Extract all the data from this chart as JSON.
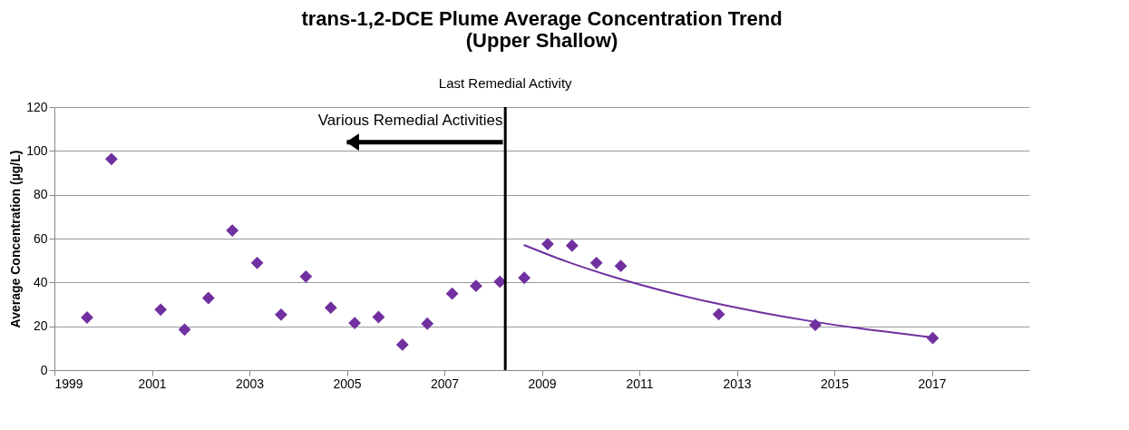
{
  "chart_data": {
    "type": "scatter",
    "title": "trans-1,2-DCE Plume Average Concentration Trend\n(Upper Shallow)",
    "ylabel": "Average Concentration (µg/L)",
    "xlim": [
      1999,
      2019
    ],
    "xticks": [
      1999,
      2001,
      2003,
      2005,
      2007,
      2009,
      2011,
      2013,
      2015,
      2017
    ],
    "ylim": [
      0,
      120
    ],
    "yticks": [
      0,
      20,
      40,
      60,
      80,
      100,
      120
    ],
    "grid": "y",
    "series": [
      {
        "marker": "diamond",
        "color": "#7030a0",
        "x": [
          1999.67,
          2000.17,
          2001.18,
          2001.67,
          2002.16,
          2002.65,
          2003.16,
          2003.65,
          2004.16,
          2004.67,
          2005.16,
          2005.65,
          2006.14,
          2006.65,
          2007.16,
          2007.65,
          2008.14,
          2008.64,
          2009.12,
          2009.62,
          2010.12,
          2010.62,
          2012.63,
          2014.61,
          2017.02
        ],
        "values": [
          24.0,
          96.3,
          27.6,
          18.5,
          32.9,
          63.7,
          48.9,
          25.3,
          42.7,
          28.5,
          21.5,
          24.2,
          11.6,
          21.2,
          34.9,
          38.4,
          40.3,
          42.1,
          57.5,
          56.8,
          48.9,
          47.5,
          25.5,
          20.6,
          14.6
        ]
      },
      {
        "type": "line",
        "color": "#7030a0",
        "x": [
          2008.63,
          2009.5,
          2010.5,
          2011.5,
          2012.5,
          2013.5,
          2014.5,
          2015.5,
          2016.5,
          2017.0
        ],
        "values": [
          57.1,
          49.6,
          42.3,
          36.1,
          30.8,
          26.3,
          22.4,
          19.1,
          16.3,
          15.0
        ]
      }
    ],
    "ref_lines": [
      {
        "axis": "x",
        "value": 2008.25,
        "label": "Last Remedial Activity",
        "color": "#000000"
      }
    ],
    "annotations": [
      {
        "text": "Various Remedial Activities",
        "x": 2008.2,
        "y": 110
      }
    ]
  }
}
